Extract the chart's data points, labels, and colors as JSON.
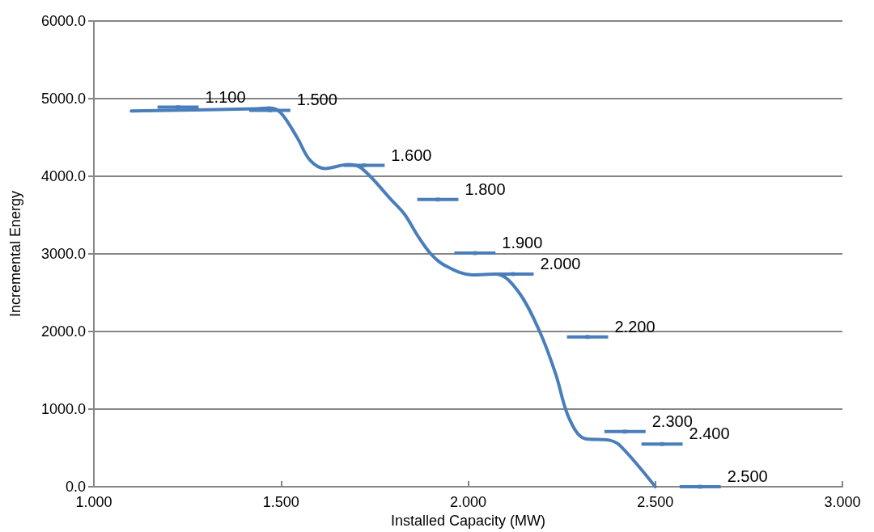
{
  "chart_data": {
    "type": "line",
    "xlabel": "Installed Capacity (MW)",
    "ylabel": "Incremental Energy",
    "xlim": [
      1.0,
      3.0
    ],
    "xticks": [
      {
        "value": 1,
        "label": "1.000"
      },
      {
        "value": 1.5,
        "label": "1.500"
      },
      {
        "value": 2,
        "label": "2.000"
      },
      {
        "value": 2.5,
        "label": "2.500"
      },
      {
        "value": 3,
        "label": "3.000"
      }
    ],
    "ylim": [
      0,
      6000
    ],
    "yticks": [
      {
        "value": 0,
        "label": "0.0"
      },
      {
        "value": 1000,
        "label": "1000.0"
      },
      {
        "value": 2000,
        "label": "2000.0"
      },
      {
        "value": 3000,
        "label": "3000.0"
      },
      {
        "value": 4000,
        "label": "4000.0"
      },
      {
        "value": 5000,
        "label": "5000.0"
      },
      {
        "value": 6000,
        "label": "6000.0"
      }
    ],
    "grid": "y",
    "line_style": "solid",
    "series": [
      {
        "color": "#4a7ebb",
        "marker": "none",
        "x": [
          1.1,
          1.435,
          1.469,
          1.499,
          1.543,
          1.577,
          1.618,
          1.679,
          1.716,
          1.794,
          1.83,
          1.867,
          1.902,
          1.938,
          2.01,
          2.075,
          2.133,
          2.191,
          2.234,
          2.269,
          2.312,
          2.377,
          2.408,
          2.5
        ],
        "values": [
          4840,
          4870,
          4880,
          4820,
          4500,
          4210,
          4100,
          4150,
          4100,
          3700,
          3510,
          3220,
          2990,
          2850,
          2730,
          2740,
          2520,
          2000,
          1450,
          890,
          620,
          600,
          520,
          0
        ]
      },
      {
        "type": "scatter",
        "color": "#4a7ebb",
        "marker": "square",
        "x": [
          1.225,
          1.47,
          1.722,
          1.919,
          2.018,
          2.12,
          2.319,
          2.419,
          2.518,
          2.62
        ],
        "values": [
          4890,
          4850,
          4140,
          3700,
          3010,
          2740,
          1930,
          710,
          550,
          0
        ],
        "xerrors": [
          0.055,
          0.055,
          0.055,
          0.055,
          0.055,
          0.055,
          0.055,
          0.055,
          0.055,
          0.055
        ]
      }
    ],
    "annotations": [
      {
        "text": "1.100",
        "x": 1.225,
        "y": 4890
      },
      {
        "text": "1.500",
        "x": 1.47,
        "y": 4850
      },
      {
        "text": "1.600",
        "x": 1.722,
        "y": 4140
      },
      {
        "text": "1.800",
        "x": 1.919,
        "y": 3700
      },
      {
        "text": "1.900",
        "x": 2.018,
        "y": 3010
      },
      {
        "text": "2.000",
        "x": 2.12,
        "y": 2740
      },
      {
        "text": "2.200",
        "x": 2.319,
        "y": 1930
      },
      {
        "text": "2.300",
        "x": 2.419,
        "y": 710
      },
      {
        "text": "2.400",
        "x": 2.518,
        "y": 550
      },
      {
        "text": "2.500",
        "x": 2.62,
        "y": 0
      }
    ]
  }
}
